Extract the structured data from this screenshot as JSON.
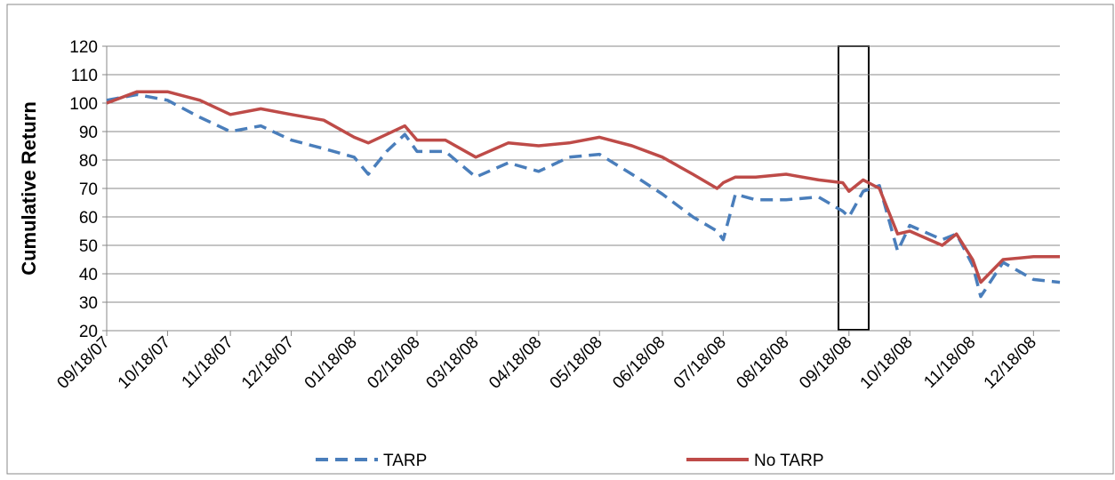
{
  "chart_data": {
    "type": "line",
    "y_label": "Cumulative Return",
    "x": [
      "09/18/07",
      "10/03/07",
      "10/18/07",
      "11/03/07",
      "11/18/07",
      "12/03/07",
      "12/18/07",
      "01/03/08",
      "01/18/08",
      "01/25/08",
      "02/03/08",
      "02/12/08",
      "02/18/08",
      "03/03/08",
      "03/18/08",
      "04/03/08",
      "04/18/08",
      "05/03/08",
      "05/18/08",
      "06/03/08",
      "06/18/08",
      "07/03/08",
      "07/15/08",
      "07/18/08",
      "07/24/08",
      "08/03/08",
      "08/18/08",
      "09/03/08",
      "09/15/08",
      "09/18/08",
      "09/25/08",
      "10/03/08",
      "10/12/08",
      "10/18/08",
      "11/03/08",
      "11/10/08",
      "11/18/08",
      "11/22/08",
      "12/03/08",
      "12/18/08",
      "12/31/08"
    ],
    "series": [
      {
        "name": "TARP",
        "color": "#4a7ebb",
        "dashed": true,
        "values": [
          101,
          103,
          101,
          95,
          90,
          92,
          87,
          84,
          81,
          75,
          83,
          89,
          83,
          83,
          74,
          79,
          76,
          81,
          82,
          75,
          68,
          60,
          55,
          52,
          68,
          66,
          66,
          67,
          62,
          60,
          69,
          71,
          48,
          57,
          52,
          54,
          43,
          32,
          44,
          38,
          37
        ]
      },
      {
        "name": "No TARP",
        "color": "#be4b48",
        "dashed": false,
        "values": [
          100,
          104,
          104,
          101,
          96,
          98,
          96,
          94,
          88,
          86,
          89,
          92,
          87,
          87,
          81,
          86,
          85,
          86,
          88,
          85,
          81,
          75,
          70,
          72,
          74,
          74,
          75,
          73,
          72,
          69,
          73,
          70,
          54,
          55,
          50,
          54,
          45,
          37,
          45,
          46,
          46
        ]
      }
    ],
    "xlim": [
      "09/18/07",
      "12/31/08"
    ],
    "xticks": [
      "09/18/07",
      "10/18/07",
      "11/18/07",
      "12/18/07",
      "01/18/08",
      "02/18/08",
      "03/18/08",
      "04/18/08",
      "05/18/08",
      "06/18/08",
      "07/18/08",
      "08/18/08",
      "09/18/08",
      "10/18/08",
      "11/18/08",
      "12/18/08"
    ],
    "ylim": [
      20,
      120
    ],
    "yticks": [
      20,
      30,
      40,
      50,
      60,
      70,
      80,
      90,
      100,
      110,
      120
    ],
    "grid": true
  }
}
